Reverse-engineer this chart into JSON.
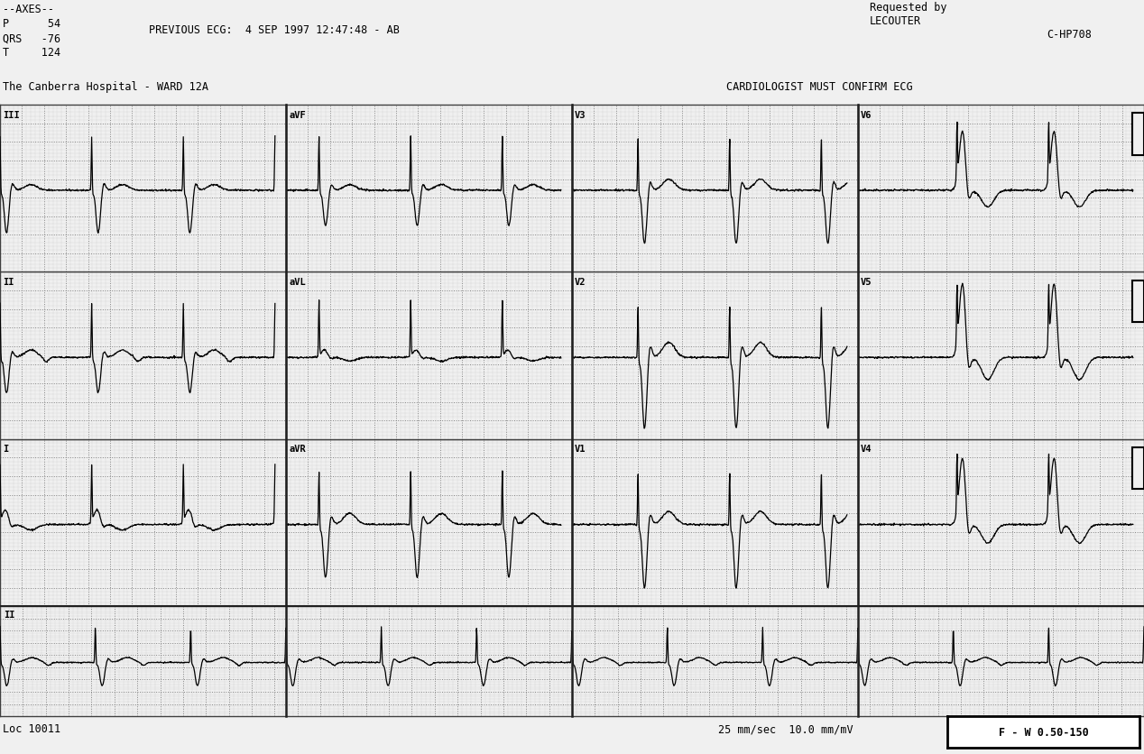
{
  "title_left": "The Canberra Hospital - WARD 12A",
  "title_right": "CARDIOLOGIST MUST CONFIRM ECG",
  "axes_text": "--AXES--\nP      54\nQRS   -76\nT     124",
  "header_center": "PREVIOUS ECG:  4 SEP 1997 12:47:48 - AB",
  "header_right_top": "Requested by\nLECOUTER",
  "header_right_code": "C-HP708",
  "footer_left": "Loc 10011",
  "footer_right": "25 mm/sec  10.0 mm/mV",
  "filter_text": "F - W 0.50-150",
  "bg_color": "#f0f0f0",
  "grid_minor_color": "#aaaaaa",
  "grid_major_color": "#777777",
  "line_color": "#000000",
  "text_color": "#000000",
  "fs": 250,
  "heart_rate": 72,
  "strip_duration": 2.5,
  "long_duration": 10.0
}
